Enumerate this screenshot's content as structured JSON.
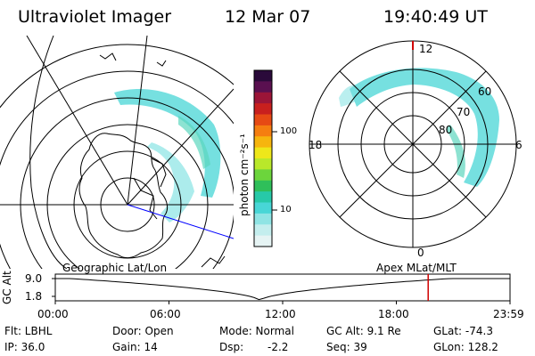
{
  "header": {
    "title": "Ultraviolet Imager",
    "date": "12 Mar 07",
    "time": "19:40:49 UT"
  },
  "colorbar": {
    "unit_label": "photon cm⁻²s⁻¹",
    "tick_100": "100",
    "tick_10": "10",
    "colors": [
      "#2a0a3a",
      "#5a1050",
      "#9b1538",
      "#c8201e",
      "#e64a14",
      "#f57e10",
      "#f6b50e",
      "#eee71a",
      "#b9e82a",
      "#6cd53c",
      "#2fbf5a",
      "#27c9a8",
      "#48d6d6",
      "#8fe4e4",
      "#c4eeee",
      "#e6f4f4"
    ]
  },
  "left_map": {
    "caption": "Geographic Lat/Lon"
  },
  "right_map": {
    "caption": "Apex  MLat/MLT",
    "mlt_12": "12",
    "mlt_18": "18",
    "mlt_6": "6",
    "mlt_0": "0",
    "lat_60": "60",
    "lat_70": "70",
    "lat_80": "80"
  },
  "timeline": {
    "ylabel": "GC Alt",
    "ymax": "9.0",
    "ymin": "1.8",
    "ticks": [
      "00:00",
      "06:00",
      "12:00",
      "18:00",
      "23:59"
    ],
    "current_time_hours": 19.68,
    "alt_min_time_hours": 10.8,
    "accent_color": "#d00000"
  },
  "info": {
    "filter": "Flt: LBHL",
    "door": "Door: Open",
    "mode": "Mode: Normal",
    "gc_alt": "GC Alt: 9.1 Re",
    "glat": "GLat: -74.3",
    "ip": "IP: 36.0",
    "gain": "Gain: 14",
    "dsp_label": "Dsp:",
    "dsp_value": "-2.2",
    "seq": "Seq: 39",
    "glon": "GLon: 128.2"
  }
}
